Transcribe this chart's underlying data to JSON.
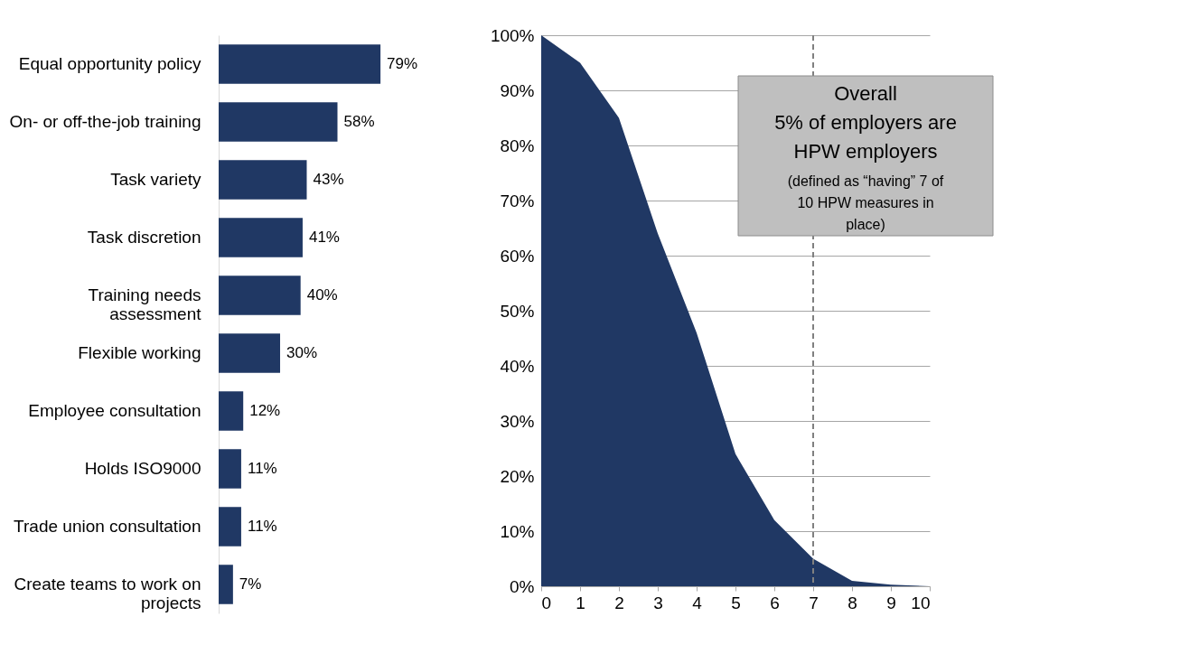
{
  "chart_data": [
    {
      "type": "bar",
      "orientation": "horizontal",
      "categories": [
        "Equal opportunity policy",
        "On- or off-the-job training",
        "Task variety",
        "Task discretion",
        "Training needs\nassessment",
        "Flexible working",
        "Employee consultation",
        "Holds ISO9000",
        "Trade union consultation",
        "Create teams to work on\nprojects"
      ],
      "values": [
        79,
        58,
        43,
        41,
        40,
        30,
        12,
        11,
        11,
        7
      ],
      "value_labels": [
        "79%",
        "58%",
        "43%",
        "41%",
        "40%",
        "30%",
        "12%",
        "11%",
        "11%",
        "7%"
      ],
      "color": "#203864",
      "grid": false
    },
    {
      "type": "area",
      "x": [
        0,
        1,
        2,
        3,
        4,
        5,
        6,
        7,
        8,
        9,
        10
      ],
      "values": [
        100,
        95,
        85,
        64,
        46,
        24,
        12,
        5,
        1,
        0.3,
        0
      ],
      "color": "#203864",
      "xlim": [
        0,
        10
      ],
      "xticks": [
        0,
        1,
        2,
        3,
        4,
        5,
        6,
        7,
        8,
        9,
        10
      ],
      "ylim": [
        0,
        100
      ],
      "yticks": [
        {
          "value": 0,
          "label": "0%"
        },
        {
          "value": 10,
          "label": "10%"
        },
        {
          "value": 20,
          "label": "20%"
        },
        {
          "value": 30,
          "label": "30%"
        },
        {
          "value": 40,
          "label": "40%"
        },
        {
          "value": 50,
          "label": "50%"
        },
        {
          "value": 60,
          "label": "60%"
        },
        {
          "value": 70,
          "label": "70%"
        },
        {
          "value": 80,
          "label": "80%"
        },
        {
          "value": 90,
          "label": "90%"
        },
        {
          "value": 100,
          "label": "100%"
        }
      ],
      "grid": "y",
      "ref_lines": [
        {
          "axis": "x",
          "value": 7,
          "color": "#808080",
          "line_style": "dashed"
        }
      ],
      "annotations": [
        "Overall\n5% of employers are\nHPW employers",
        "(defined as “having” 7 of\n10 HPW measures in\nplace)"
      ]
    }
  ]
}
